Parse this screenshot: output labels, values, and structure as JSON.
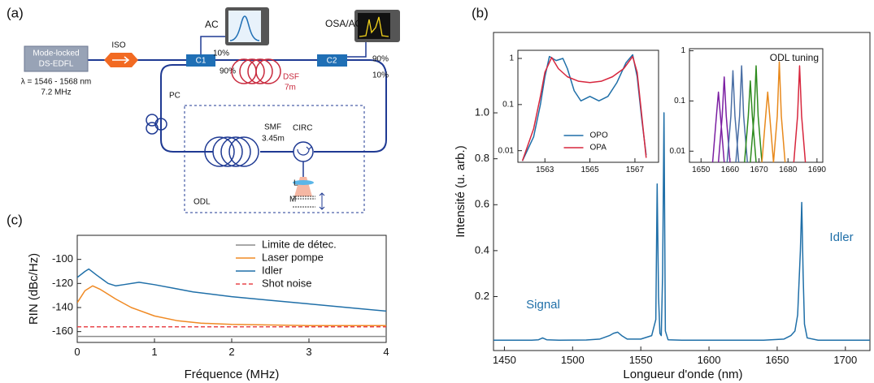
{
  "panel_labels": [
    "(a)",
    "(b)",
    "(c)"
  ],
  "diagram": {
    "source": {
      "label": [
        "Mode-locked",
        "DS-EDFL"
      ],
      "specs": [
        "λ = 1546 - 1568 nm",
        "7.2 MHz"
      ]
    },
    "isolator": "ISO",
    "ac": "AC",
    "osa": "OSA/AC",
    "c1": {
      "label": "C1",
      "ports": [
        "10%",
        "90%"
      ]
    },
    "c2": {
      "label": "C2",
      "ports": [
        "90%",
        "10%"
      ]
    },
    "dsf": [
      "DSF",
      "7m"
    ],
    "pc": "PC",
    "smf": [
      "SMF",
      "3.45m"
    ],
    "circ": "CIRC",
    "lens": "L",
    "mirror": "M",
    "odl": "ODL"
  },
  "chart_data": [
    {
      "type": "line",
      "x_label": "Longueur d'onde (nm)",
      "y_label": "Intensité (u. arb.)",
      "x": [
        1442,
        1460,
        1470,
        1475,
        1478,
        1481,
        1490,
        1510,
        1520,
        1527,
        1530,
        1533,
        1536,
        1540,
        1550,
        1558,
        1561,
        1562,
        1563,
        1564,
        1565,
        1566,
        1567,
        1568,
        1570,
        1580,
        1600,
        1640,
        1655,
        1660,
        1663,
        1665,
        1667,
        1668,
        1669,
        1670,
        1672,
        1680,
        1700,
        1718
      ],
      "series": [
        {
          "color": "#1f6fa8",
          "values": [
            0.01,
            0.01,
            0.01,
            0.012,
            0.02,
            0.012,
            0.01,
            0.011,
            0.015,
            0.03,
            0.04,
            0.045,
            0.03,
            0.015,
            0.015,
            0.03,
            0.1,
            0.69,
            0.2,
            0.04,
            0.03,
            0.3,
            1.0,
            0.05,
            0.012,
            0.01,
            0.01,
            0.01,
            0.015,
            0.03,
            0.05,
            0.12,
            0.4,
            0.61,
            0.3,
            0.08,
            0.02,
            0.01,
            0.01,
            0.01
          ]
        }
      ],
      "xlim": [
        1442,
        1718
      ],
      "xticks": [
        1450,
        1500,
        1550,
        1600,
        1650,
        1700
      ],
      "ylim": [
        -0.035,
        1.35
      ],
      "yticks": [
        0.2,
        0.4,
        0.6,
        0.8,
        {
          "value": 1,
          "label": "1.0"
        }
      ],
      "annotations": [
        "Signal",
        "Idler"
      ],
      "annotation_color": "#1f6fa8"
    },
    {
      "type": "line",
      "log_y": true,
      "legend": "lower center",
      "series": [
        {
          "name": "OPO",
          "color": "#1f6fa8",
          "x": [
            1562.0,
            1562.5,
            1562.8,
            1563.0,
            1563.2,
            1563.5,
            1563.8,
            1564.0,
            1564.3,
            1564.6,
            1565.0,
            1565.4,
            1565.8,
            1566.2,
            1566.6,
            1566.9,
            1567.1,
            1567.3,
            1567.5
          ],
          "values": [
            0.006,
            0.02,
            0.1,
            0.4,
            1.1,
            0.9,
            1.0,
            0.6,
            0.2,
            0.12,
            0.15,
            0.12,
            0.15,
            0.3,
            0.8,
            1.2,
            0.4,
            0.05,
            0.008
          ]
        },
        {
          "name": "OPA",
          "color": "#d7263d",
          "x": [
            1562.0,
            1562.5,
            1562.8,
            1563.0,
            1563.3,
            1563.6,
            1564.0,
            1564.5,
            1565.0,
            1565.5,
            1566.0,
            1566.5,
            1566.9,
            1567.1,
            1567.3,
            1567.5
          ],
          "values": [
            0.006,
            0.03,
            0.15,
            0.5,
            1.05,
            0.6,
            0.4,
            0.32,
            0.3,
            0.32,
            0.4,
            0.6,
            1.1,
            0.5,
            0.06,
            0.007
          ]
        }
      ],
      "xlim": [
        1561.8,
        1568.05
      ],
      "xticks": [
        1563,
        1565,
        1567
      ],
      "ylim": [
        0.0056,
        1.5
      ],
      "yticks": [
        1,
        0.1,
        0.01
      ]
    },
    {
      "type": "line",
      "log_y": true,
      "title": "ODL tuning",
      "series": [
        {
          "color": "#7b1fa2",
          "x": [
            1654,
            1655.3,
            1656,
            1656.7,
            1658
          ],
          "values": [
            0.006,
            0.05,
            0.15,
            0.05,
            0.006
          ]
        },
        {
          "color": "#7b1fa2",
          "x": [
            1656,
            1657.3,
            1658,
            1658.7,
            1660
          ],
          "values": [
            0.006,
            0.05,
            0.3,
            0.05,
            0.006
          ]
        },
        {
          "color": "#4a6fa5",
          "x": [
            1659,
            1660.3,
            1661,
            1661.7,
            1663
          ],
          "values": [
            0.006,
            0.05,
            0.4,
            0.05,
            0.006
          ]
        },
        {
          "color": "#4a6fa5",
          "x": [
            1662,
            1663.3,
            1664,
            1664.7,
            1666
          ],
          "values": [
            0.006,
            0.05,
            0.5,
            0.05,
            0.006
          ]
        },
        {
          "color": "#2e8b1e",
          "x": [
            1665,
            1666.3,
            1667,
            1667.7,
            1669
          ],
          "values": [
            0.006,
            0.05,
            0.25,
            0.05,
            0.006
          ]
        },
        {
          "color": "#2e8b1e",
          "x": [
            1667,
            1668.3,
            1669,
            1669.7,
            1671
          ],
          "values": [
            0.006,
            0.05,
            0.5,
            0.05,
            0.006
          ]
        },
        {
          "color": "#e8891c",
          "x": [
            1671,
            1672.3,
            1673,
            1673.7,
            1675
          ],
          "values": [
            0.006,
            0.05,
            0.15,
            0.05,
            0.006
          ]
        },
        {
          "color": "#e8891c",
          "x": [
            1675,
            1676.3,
            1677,
            1677.7,
            1679
          ],
          "values": [
            0.006,
            0.05,
            0.6,
            0.05,
            0.006
          ]
        },
        {
          "color": "#d7263d",
          "x": [
            1682,
            1683.3,
            1684,
            1684.7,
            1686
          ],
          "values": [
            0.006,
            0.05,
            0.5,
            0.05,
            0.006
          ]
        }
      ],
      "xlim": [
        1646,
        1692
      ],
      "xticks": [
        1650,
        1660,
        1670,
        1680,
        1690
      ],
      "ylim": [
        0.006,
        1.1
      ],
      "yticks": [
        1,
        0.1,
        0.01
      ]
    },
    {
      "type": "line",
      "x_label": "Fréquence (MHz)",
      "y_label": "RIN (dBc/Hz)",
      "legend": "upper right",
      "series": [
        {
          "name": "Limite de détec.",
          "color": "#8c8c8c",
          "x": [
            0,
            1,
            2,
            3,
            4
          ],
          "values": [
            -164,
            -164,
            -164,
            -164,
            -164
          ]
        },
        {
          "name": "Laser pompe",
          "color": "#f08a24",
          "x": [
            0,
            0.1,
            0.2,
            0.3,
            0.5,
            0.7,
            1,
            1.3,
            1.6,
            2,
            3,
            4
          ],
          "values": [
            -136,
            -126,
            -122,
            -125,
            -133,
            -140,
            -147,
            -151,
            -153,
            -154,
            -155,
            -155
          ]
        },
        {
          "name": "Idler",
          "color": "#1f6fa8",
          "x": [
            0,
            0.1,
            0.15,
            0.25,
            0.4,
            0.5,
            0.6,
            0.8,
            1,
            1.25,
            1.5,
            2,
            2.5,
            3,
            3.5,
            4
          ],
          "values": [
            -115,
            -110,
            -108,
            -113,
            -120,
            -122,
            -121,
            -119,
            -121,
            -124,
            -127,
            -131,
            -134,
            -137,
            -140,
            -143
          ]
        },
        {
          "name": "Shot noise",
          "color": "#e8474c",
          "linestyle": "dashed",
          "x": [
            0,
            4
          ],
          "values": [
            -156,
            -156
          ]
        }
      ],
      "xlim": [
        0,
        4
      ],
      "xticks": [
        0,
        1,
        2,
        3,
        4
      ],
      "ylim": [
        -169,
        -80
      ],
      "yticks": [
        -100,
        -120,
        -140,
        -160
      ]
    }
  ]
}
